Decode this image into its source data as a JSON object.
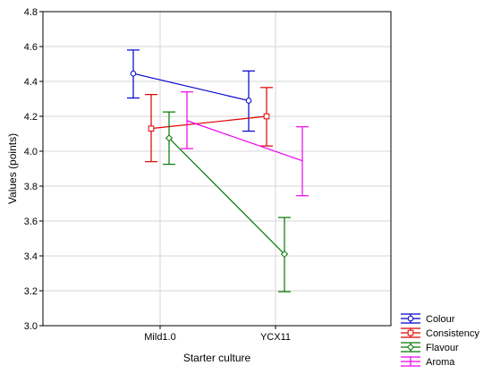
{
  "chart_data": {
    "type": "line",
    "xlabel": "Starter culture",
    "ylabel": "Values (points)",
    "categories": [
      "Mild1.0",
      "YCX11"
    ],
    "ylim": [
      3.0,
      4.8
    ],
    "yticks": [
      "3.0",
      "3.2",
      "3.4",
      "3.6",
      "3.8",
      "4.0",
      "4.2",
      "4.4",
      "4.6",
      "4.8"
    ],
    "grid": true,
    "legend_position": "bottom-right-outside",
    "series": [
      {
        "name": "Colour",
        "color": "#0000cc",
        "marker": "circle",
        "values": [
          4.445,
          4.29
        ],
        "lower": [
          4.305,
          4.115
        ],
        "upper": [
          4.58,
          4.46
        ]
      },
      {
        "name": "Consistency",
        "color": "#dd0000",
        "marker": "square",
        "values": [
          4.13,
          4.2
        ],
        "lower": [
          3.94,
          4.03
        ],
        "upper": [
          4.325,
          4.365
        ]
      },
      {
        "name": "Flavour",
        "color": "#007700",
        "marker": "diamond",
        "values": [
          4.075,
          3.41
        ],
        "lower": [
          3.925,
          3.195
        ],
        "upper": [
          4.225,
          3.62
        ]
      },
      {
        "name": "Aroma",
        "color": "#ee00ee",
        "marker": "none",
        "values": [
          4.175,
          3.945
        ],
        "lower": [
          4.015,
          3.745
        ],
        "upper": [
          4.34,
          4.14
        ]
      }
    ]
  }
}
